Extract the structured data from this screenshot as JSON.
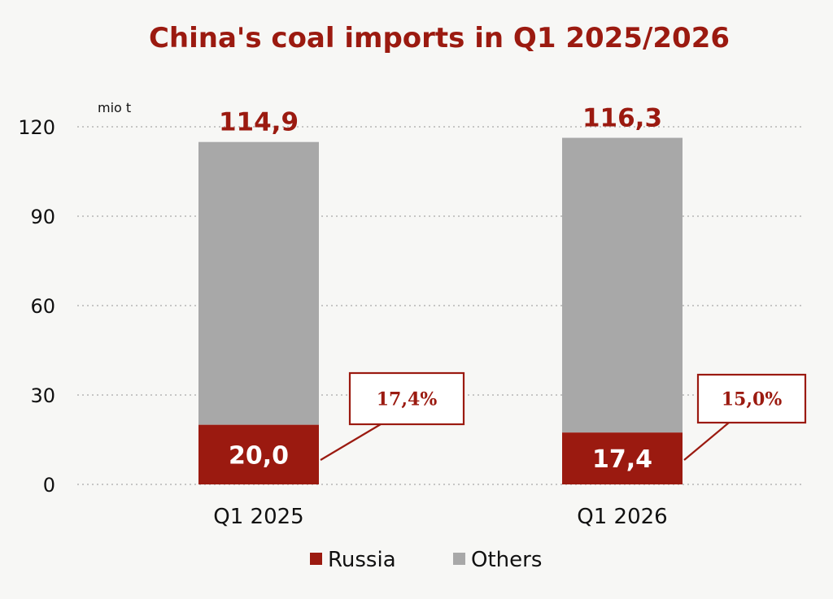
{
  "chart_data": {
    "type": "bar",
    "stacked": true,
    "title": "China's coal imports in Q1 2025/2026",
    "unit_label": "mio t",
    "categories": [
      "Q1 2025",
      "Q1 2026"
    ],
    "series": [
      {
        "name": "Russia",
        "values": [
          20.0,
          17.4
        ],
        "labels": [
          "20,0",
          "17,4"
        ],
        "color": "#9b1a10"
      },
      {
        "name": "Others",
        "values": [
          94.9,
          98.9
        ],
        "color": "#a8a8a8"
      }
    ],
    "totals": [
      114.9,
      116.3
    ],
    "total_labels": [
      "114,9",
      "116,3"
    ],
    "russia_share_labels": [
      "17,4%",
      "15,0%"
    ],
    "ylim": [
      0,
      120
    ],
    "yticks": [
      0,
      30,
      60,
      90,
      120
    ],
    "grid": true,
    "legend_position": "bottom-center",
    "colors": {
      "title": "#9b1a10",
      "accent": "#9b1a10",
      "grid": "#b5b5b5"
    }
  }
}
